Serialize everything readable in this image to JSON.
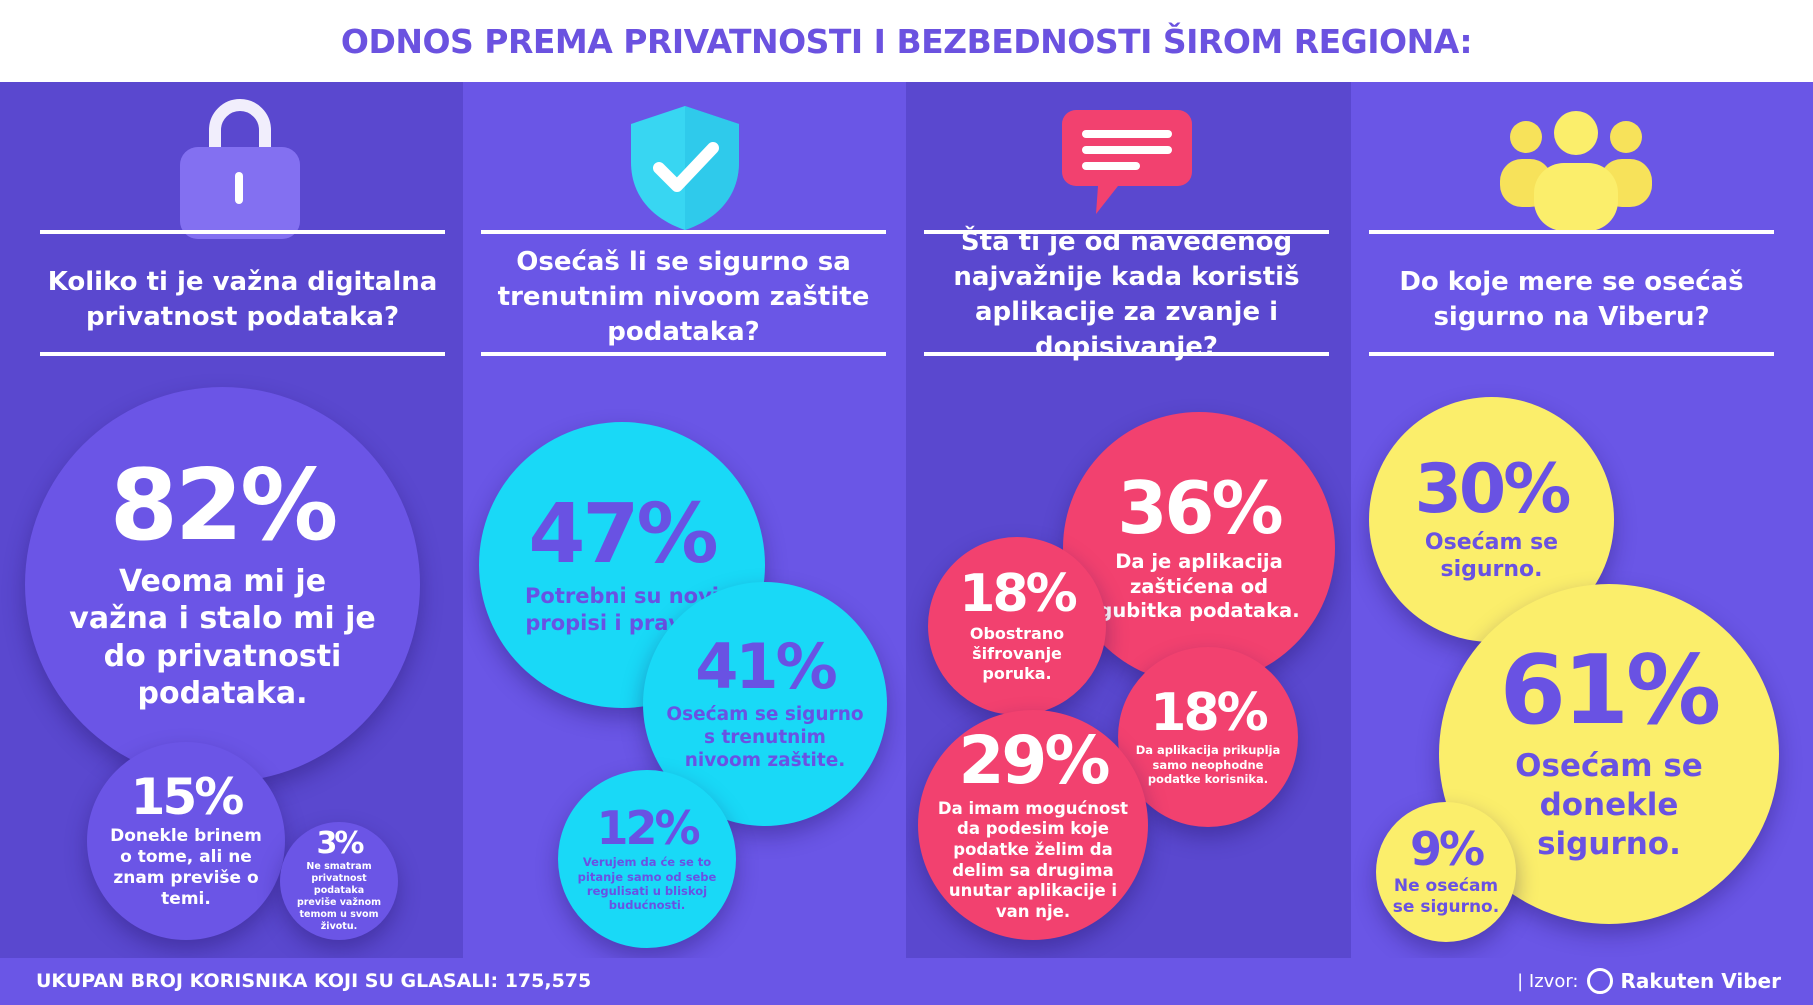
{
  "title": "ODNOS PREMA PRIVATNOSTI I BEZBEDNOSTI ŠIROM REGIONA:",
  "footer": {
    "total_label": "UKUPAN BROJ KORISNIKA KOJI SU GLASALI: 175,575",
    "source_label": "| Izvor:",
    "brand": "Rakuten Viber"
  },
  "colors": {
    "background": "#5a48cf",
    "purple_bubble": "#6b55e6",
    "cyan_bubble": "#19d9f7",
    "pink_bubble": "#f2416f",
    "yellow_bubble": "#fbee6b",
    "title_text": "#6b52e0"
  },
  "icons": [
    "lock-icon",
    "shield-check-icon",
    "chat-bubble-icon",
    "users-group-icon"
  ],
  "chart_data": [
    {
      "type": "bubble",
      "title": "Koliko ti je važna digitalna privatnost podataka?",
      "values": [
        {
          "label": "Veoma mi je važna i stalo mi je do privatnosti podataka.",
          "value": 82,
          "display": "82%"
        },
        {
          "label": "Donekle brinem o tome, ali ne znam previše o temi.",
          "value": 15,
          "display": "15%"
        },
        {
          "label": "Ne smatram privatnost podataka previše važnom temom u svom životu.",
          "value": 3,
          "display": "3%"
        }
      ]
    },
    {
      "type": "bubble",
      "title": "Osećaš li se sigurno sa trenutnim nivoom zaštite podataka?",
      "values": [
        {
          "label": "Potrebni su novi propisi i pravila.",
          "value": 47,
          "display": "47%"
        },
        {
          "label": "Osećam se sigurno s trenutnim nivoom zaštite.",
          "value": 41,
          "display": "41%"
        },
        {
          "label": "Verujem da će se to pitanje samo od sebe regulisati u bliskoj budućnosti.",
          "value": 12,
          "display": "12%"
        }
      ]
    },
    {
      "type": "bubble",
      "title": "Šta ti je od navedenog najvažnije kada koristiš aplikacije za zvanje i dopisivanje?",
      "values": [
        {
          "label": "Da je aplikacija zaštićena od gubitka podataka.",
          "value": 36,
          "display": "36%"
        },
        {
          "label": "Obostrano šifrovanje poruka.",
          "value": 18,
          "display": "18%"
        },
        {
          "label": "Da aplikacija prikuplja samo neophodne podatke korisnika.",
          "value": 18,
          "display": "18%"
        },
        {
          "label": "Da imam mogućnost da podesim koje podatke želim da delim sa drugima unutar aplikacije i van nje.",
          "value": 29,
          "display": "29%"
        }
      ]
    },
    {
      "type": "bubble",
      "title": "Do koje mere se osećaš sigurno na Viberu?",
      "values": [
        {
          "label": "Osećam se sigurno.",
          "value": 30,
          "display": "30%"
        },
        {
          "label": "Osećam se donekle sigurno.",
          "value": 61,
          "display": "61%"
        },
        {
          "label": "Ne osećam se sigurno.",
          "value": 9,
          "display": "9%"
        }
      ]
    }
  ]
}
